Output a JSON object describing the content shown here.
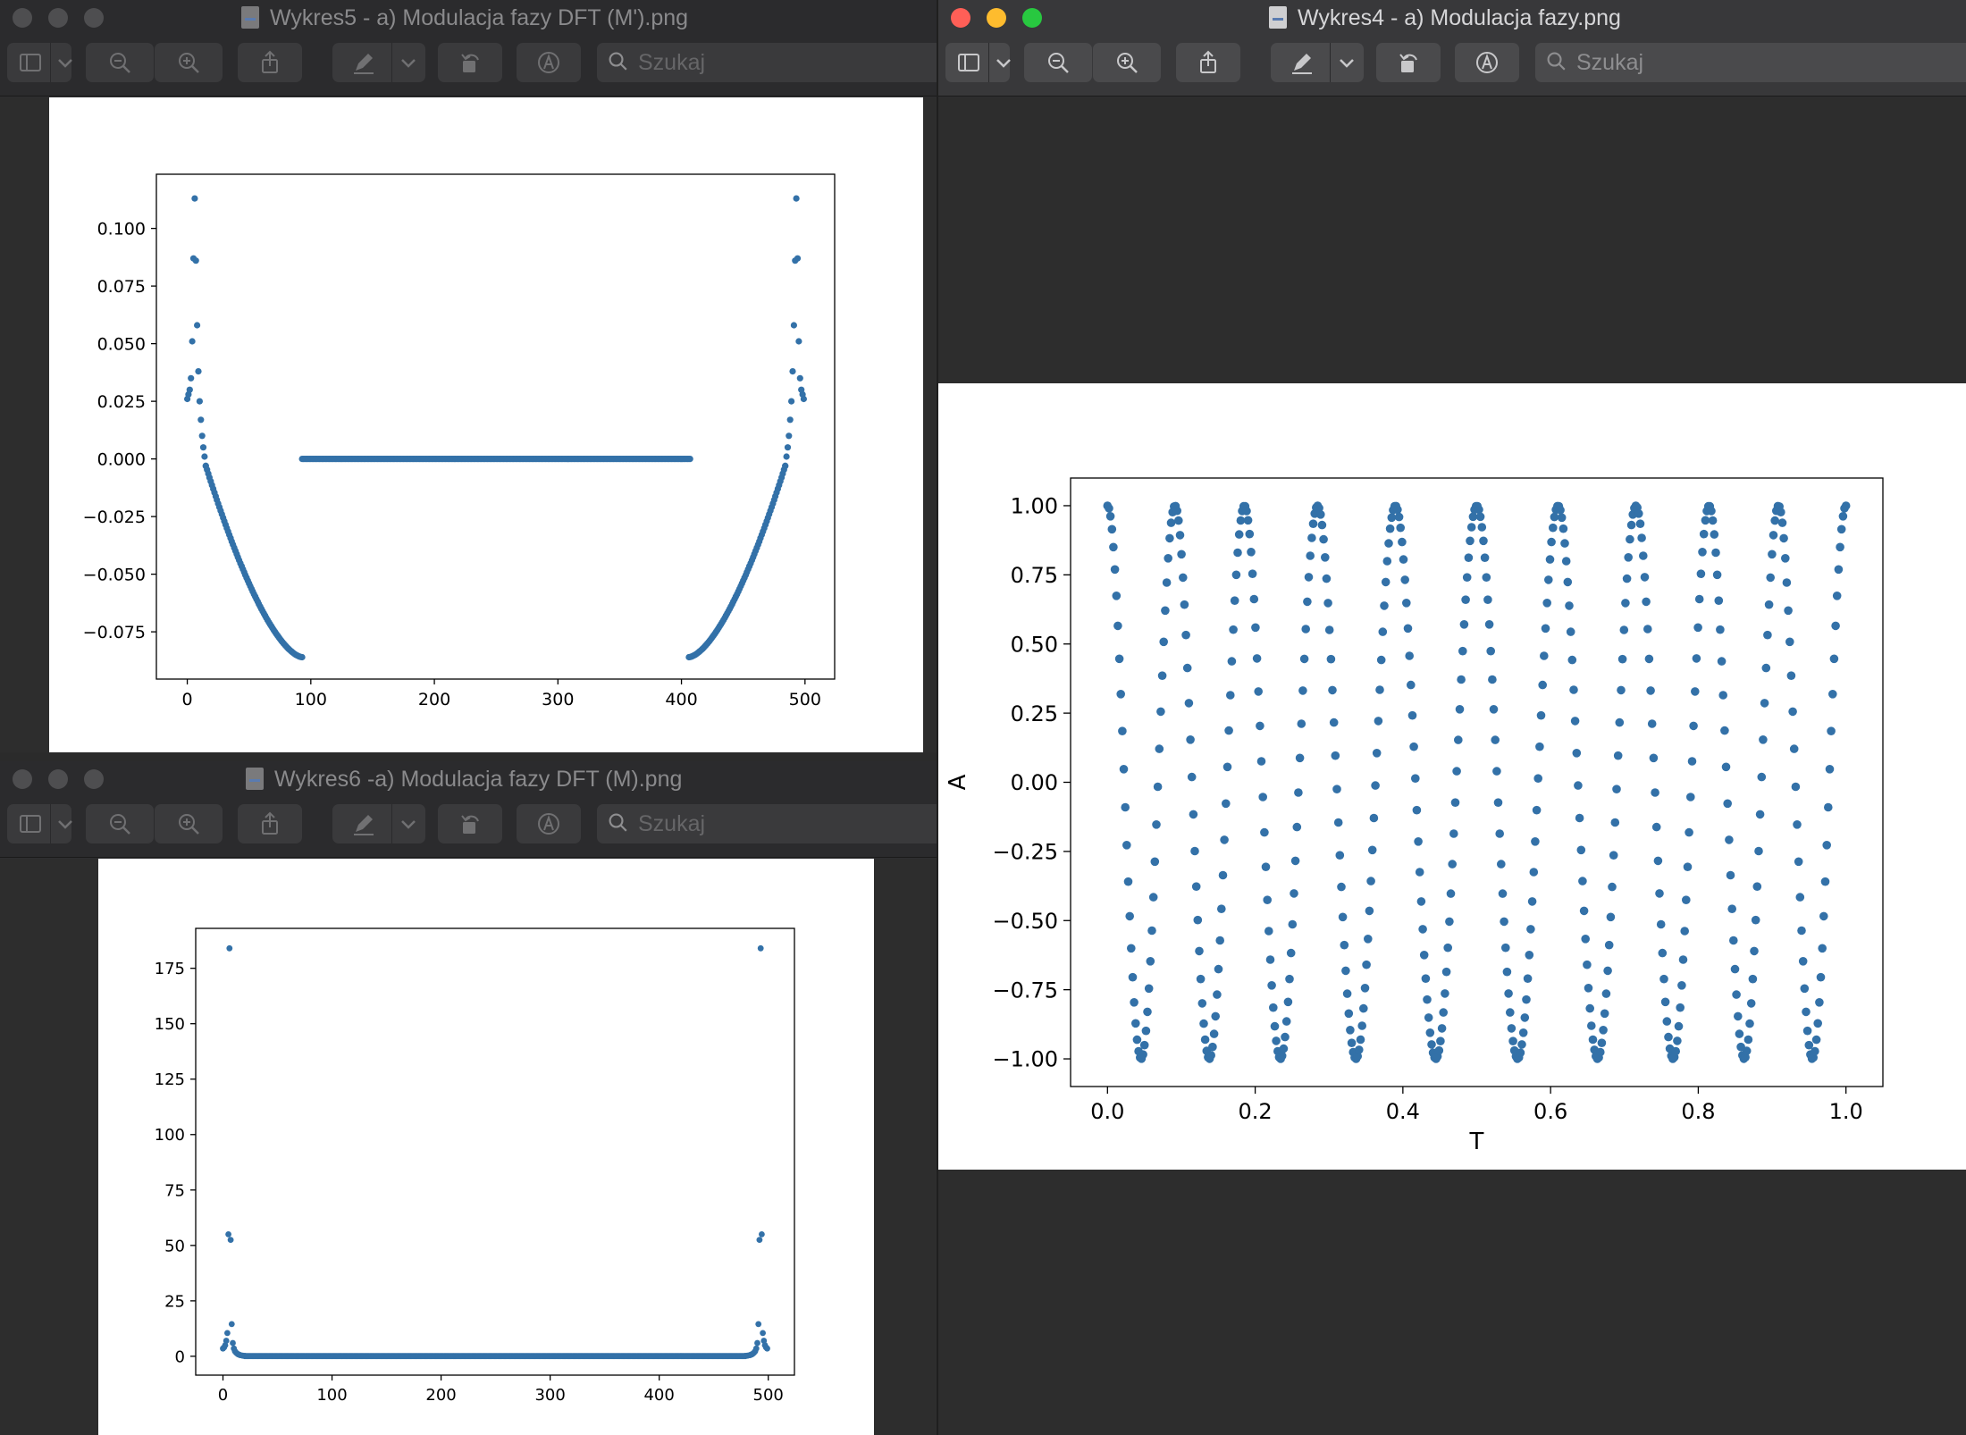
{
  "ui": {
    "search_placeholder": "Szukaj",
    "icons": [
      "sidebar-icon",
      "chevron-down-icon",
      "zoom-out-icon",
      "zoom-in-icon",
      "share-icon",
      "markup-pen-icon",
      "rotate-icon",
      "annotate-icon",
      "search-icon"
    ]
  },
  "windows": {
    "w5": {
      "title": "Wykres5 - a) Modulacja fazy DFT (M').png",
      "chart_data": {
        "type": "scatter",
        "title": "",
        "xlabel": "",
        "ylabel": "",
        "xlim": [
          -25,
          524
        ],
        "ylim": [
          -0.0955,
          0.1235
        ],
        "xticks": [
          0,
          100,
          200,
          300,
          400,
          500
        ],
        "yticks": [
          -0.075,
          -0.05,
          -0.025,
          0.0,
          0.025,
          0.05,
          0.075,
          0.1
        ],
        "ytick_labels": [
          "−0.075",
          "−0.050",
          "−0.025",
          "0.000",
          "0.025",
          "0.050",
          "0.075",
          "0.100"
        ],
        "color": "#3371a8",
        "series": [
          {
            "x": [
              0,
              1,
              2,
              3,
              4,
              5,
              6,
              7,
              8,
              9,
              10,
              11,
              12,
              13,
              14,
              15
            ],
            "y": [
              0.026,
              0.028,
              0.03,
              0.035,
              0.051,
              0.087,
              0.113,
              0.086,
              0.058,
              0.038,
              0.025,
              0.017,
              0.01,
              0.005,
              0.001,
              -0.003
            ]
          },
          {
            "x": [
              499,
              498,
              497,
              496,
              495,
              494,
              493,
              492,
              491,
              490,
              489,
              488,
              487,
              486,
              485,
              484
            ],
            "y": [
              0.026,
              0.028,
              0.03,
              0.035,
              0.051,
              0.087,
              0.113,
              0.086,
              0.058,
              0.038,
              0.025,
              0.017,
              0.01,
              0.005,
              0.001,
              -0.003
            ]
          },
          {
            "x_range": [
              15,
              93
            ],
            "y_start": -0.003,
            "y_end": -0.086,
            "shape": "concave-decay"
          },
          {
            "x_range": [
              406,
              484
            ],
            "y_start": -0.086,
            "y_end": -0.003,
            "shape": "concave-rise"
          },
          {
            "x_range": [
              93,
              407
            ],
            "y_const": 0.0
          }
        ]
      }
    },
    "w6": {
      "title": "Wykres6 -a) Modulacja fazy DFT (M).png",
      "chart_data": {
        "type": "scatter",
        "title": "",
        "xlabel": "",
        "ylabel": "",
        "xlim": [
          -25,
          524
        ],
        "ylim": [
          -8.5,
          193
        ],
        "xticks": [
          0,
          100,
          200,
          300,
          400,
          500
        ],
        "yticks": [
          0,
          25,
          50,
          75,
          100,
          125,
          150,
          175
        ],
        "ytick_labels": [
          "0",
          "25",
          "50",
          "75",
          "100",
          "125",
          "150",
          "175"
        ],
        "color": "#3371a8",
        "series": [
          {
            "x": [
              0,
              1,
              2,
              3,
              4,
              5,
              6,
              7,
              8,
              9,
              10,
              11,
              12,
              13,
              14,
              15,
              16,
              18,
              20
            ],
            "y": [
              3.5,
              4.0,
              5.0,
              7.0,
              10.5,
              55.0,
              184.0,
              52.5,
              14.5,
              6.0,
              3.5,
              2.3,
              1.6,
              1.2,
              0.9,
              0.7,
              0.5,
              0.3,
              0.2
            ]
          },
          {
            "x": [
              499,
              498,
              497,
              496,
              495,
              494,
              493,
              492,
              491,
              490,
              489,
              488,
              487,
              486,
              485,
              484,
              483,
              481,
              479
            ],
            "y": [
              3.5,
              4.0,
              5.0,
              7.0,
              10.5,
              55.0,
              184.0,
              52.5,
              14.5,
              6.0,
              3.5,
              2.3,
              1.6,
              1.2,
              0.9,
              0.7,
              0.5,
              0.3,
              0.2
            ]
          },
          {
            "x_range": [
              20,
              479
            ],
            "y_const": 0.1
          }
        ]
      }
    },
    "w4": {
      "title": "Wykres4 - a) Modulacja fazy.png",
      "chart_data": {
        "type": "scatter",
        "title": "",
        "xlabel": "T",
        "ylabel": "A",
        "xlim": [
          -0.05,
          1.05
        ],
        "ylim": [
          -1.1,
          1.1
        ],
        "xticks": [
          0.0,
          0.2,
          0.4,
          0.6,
          0.8,
          1.0
        ],
        "xtick_labels": [
          "0.0",
          "0.2",
          "0.4",
          "0.6",
          "0.8",
          "1.0"
        ],
        "yticks": [
          -1.0,
          -0.75,
          -0.5,
          -0.25,
          0.0,
          0.25,
          0.5,
          0.75,
          1.0
        ],
        "ytick_labels": [
          "−1.00",
          "−0.75",
          "−0.50",
          "−0.25",
          "0.00",
          "0.25",
          "0.50",
          "0.75",
          "1.00"
        ],
        "color": "#3371a8",
        "function": "A = cos(2π·10·T + sin(2π·1·T))",
        "samples": 500,
        "t_range": [
          0,
          1
        ]
      }
    }
  }
}
